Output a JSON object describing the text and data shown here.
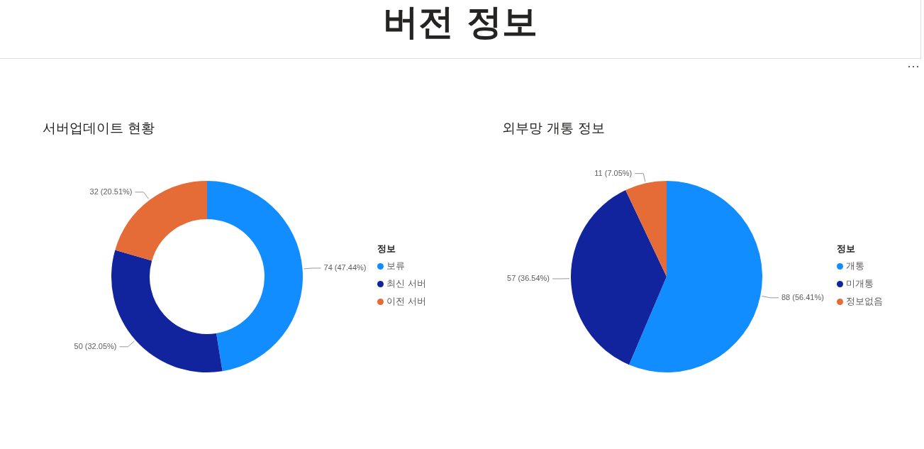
{
  "chart_data": [
    {
      "type": "other",
      "title": "버전 정보"
    },
    {
      "type": "donut",
      "title": "서버업데이트 현황",
      "legend_title": "정보",
      "legend": "right",
      "categories": [
        "보류",
        "최신 서버",
        "이전 서버"
      ],
      "values": [
        74,
        50,
        32
      ],
      "colors": [
        "#118dff",
        "#12239e",
        "#e66c37"
      ],
      "value_labels": [
        "74 (47.44%)",
        "50 (32.05%)",
        "32 (20.51%)"
      ]
    },
    {
      "type": "pie",
      "title": "외부망 개통 정보",
      "legend_title": "정보",
      "legend": "right",
      "categories": [
        "개통",
        "미개통",
        "정보없음"
      ],
      "values": [
        88,
        57,
        11
      ],
      "colors": [
        "#118dff",
        "#12239e",
        "#e66c37"
      ],
      "value_labels": [
        "88 (56.41%)",
        "57 (36.54%)",
        "11 (7.05%)"
      ]
    }
  ]
}
